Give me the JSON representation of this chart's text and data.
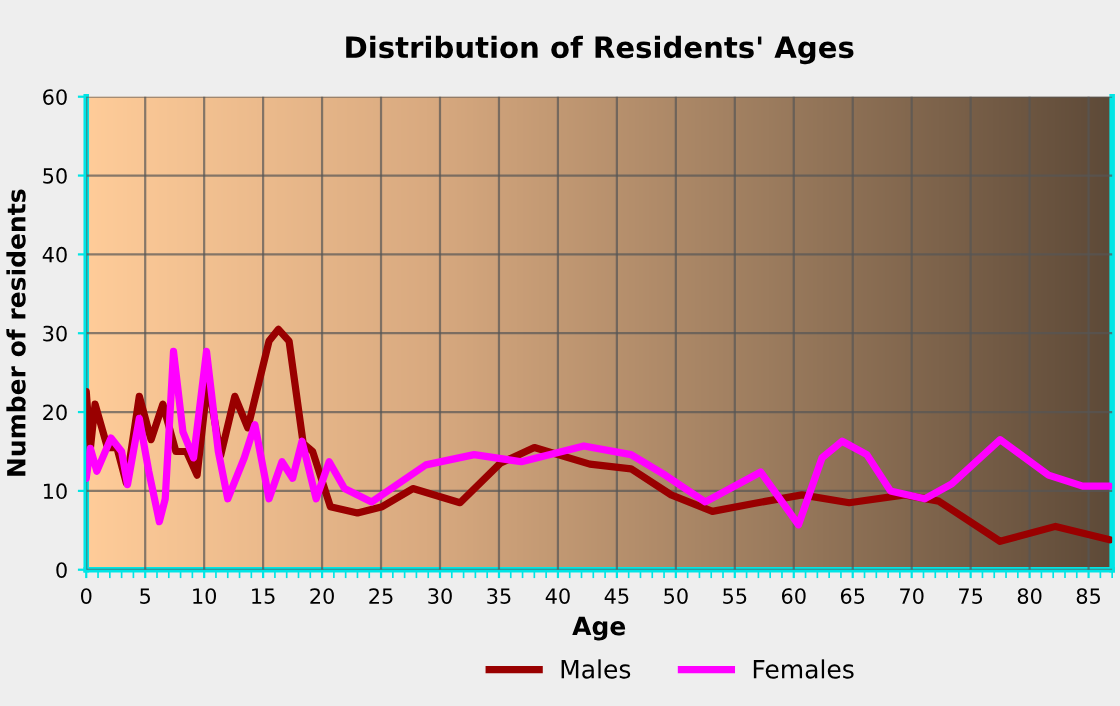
{
  "chart_data": {
    "type": "line",
    "title": "Distribution of Residents' Ages",
    "xlabel": "Age",
    "ylabel": "Number of residents",
    "xlim": [
      0,
      87
    ],
    "xticks": [
      0,
      5,
      10,
      15,
      20,
      25,
      30,
      35,
      40,
      45,
      50,
      55,
      60,
      65,
      70,
      75,
      80,
      85
    ],
    "ylim": [
      0,
      60
    ],
    "yticks": [
      0,
      10,
      20,
      30,
      40,
      50,
      60
    ],
    "grid": true,
    "legend": "bottom",
    "series": [
      {
        "name": "Males",
        "color": "#990000",
        "x": [
          0,
          0.35,
          0.75,
          1.8,
          2.6,
          3.4,
          4.5,
          5.5,
          6.5,
          7.6,
          8.5,
          9.4,
          10.3,
          11.4,
          12.6,
          13.7,
          15.5,
          16.3,
          17.2,
          18.4,
          19.2,
          20.7,
          23,
          25.1,
          27.7,
          31.7,
          35.1,
          38,
          42.7,
          46.2,
          49.6,
          53.1,
          56.6,
          60.7,
          64.7,
          69.4,
          72.3,
          77.5,
          82.2,
          86.8
        ],
        "values": [
          22.6,
          15.4,
          21,
          15.5,
          15.5,
          11,
          22,
          16.5,
          21,
          15,
          15,
          12,
          24,
          14.5,
          22,
          18,
          29,
          30.5,
          29,
          16,
          15,
          8,
          7.2,
          8,
          10.3,
          8.5,
          13.5,
          15.5,
          13.4,
          12.8,
          9.5,
          7.4,
          8.4,
          9.5,
          8.5,
          9.5,
          8.7,
          3.6,
          5.5,
          3.8
        ]
      },
      {
        "name": "Females",
        "color": "#ff00ff",
        "x": [
          0,
          0.35,
          0.9,
          2.1,
          3,
          3.5,
          4.5,
          5.3,
          6.2,
          6.7,
          7.4,
          8.2,
          9.1,
          10.2,
          11.2,
          12,
          13.4,
          14.3,
          15.5,
          16.6,
          17.5,
          18.3,
          19.5,
          20.6,
          21.9,
          24.2,
          28.8,
          32.9,
          36.9,
          42.2,
          46.2,
          49.1,
          52.5,
          57.2,
          60.4,
          62.4,
          64.1,
          66.2,
          68.2,
          71.1,
          73.4,
          77.5,
          81.6,
          84.5,
          86.8
        ],
        "values": [
          11.6,
          15.4,
          12.5,
          16.7,
          15,
          10.8,
          19.2,
          12.5,
          6.1,
          9,
          27.7,
          17.5,
          14.2,
          27.7,
          15,
          9,
          14.2,
          18.4,
          9,
          13.7,
          11.6,
          16.3,
          9,
          13.7,
          10.3,
          8.6,
          13.3,
          14.6,
          13.7,
          15.7,
          14.6,
          12,
          8.6,
          12.4,
          5.7,
          14.2,
          16.3,
          14.6,
          10,
          9,
          10.9,
          16.5,
          12,
          10.6,
          10.6
        ]
      }
    ]
  }
}
